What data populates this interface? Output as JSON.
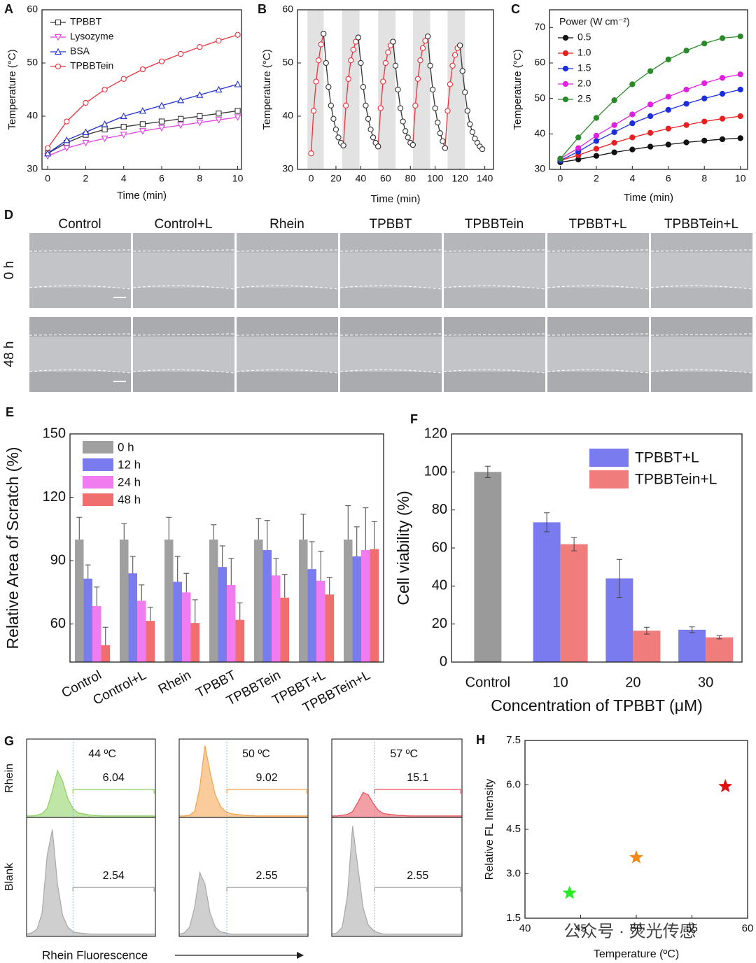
{
  "chart_data": [
    {
      "type": "line",
      "panel": "A",
      "xlabel": "Time (min)",
      "ylabel": "Temperature (°C)",
      "x": [
        0,
        1,
        2,
        3,
        4,
        5,
        6,
        7,
        8,
        9,
        10
      ],
      "xlim": [
        -0.3,
        10.2
      ],
      "ylim": [
        30,
        60
      ],
      "xticks": [
        0,
        2,
        4,
        6,
        8,
        10
      ],
      "yticks": [
        30,
        40,
        50,
        60
      ],
      "legend": "upper left",
      "marker_fill": "open",
      "series": [
        {
          "name": "TPBBT",
          "color": "#333333",
          "marker": "square",
          "values": [
            33,
            35,
            36.5,
            37.5,
            38,
            38.5,
            39,
            39.5,
            40,
            40.5,
            41
          ]
        },
        {
          "name": "Lysozyme",
          "color": "#e040e0",
          "marker": "triangle-down",
          "values": [
            32.5,
            34,
            35,
            35.8,
            36.5,
            37.2,
            37.8,
            38.3,
            38.8,
            39.3,
            39.8
          ]
        },
        {
          "name": "BSA",
          "color": "#2030d0",
          "marker": "triangle",
          "values": [
            33,
            35.5,
            37,
            38.5,
            40,
            41,
            42,
            43,
            44,
            45,
            46
          ]
        },
        {
          "name": "TPBBTein",
          "color": "#e8323c",
          "marker": "circle",
          "values": [
            34,
            39,
            42.5,
            45,
            47,
            48.8,
            50.3,
            51.7,
            53,
            54.2,
            55.3
          ]
        }
      ]
    },
    {
      "type": "line",
      "panel": "B",
      "xlabel": "Time (min)",
      "ylabel": "Temperature (°C)",
      "x": [
        0,
        2,
        4,
        6,
        8,
        10,
        12,
        14,
        16,
        18,
        20,
        22,
        24,
        26,
        28,
        30,
        32,
        34,
        36,
        38,
        40,
        42,
        44,
        46,
        48,
        50,
        52,
        54,
        56,
        58,
        60,
        62,
        64,
        66,
        68,
        70,
        72,
        74,
        76,
        78,
        80,
        82,
        84,
        86,
        88,
        90,
        92,
        94,
        96,
        98,
        100,
        102,
        104,
        106,
        108,
        110,
        112,
        114,
        116,
        118,
        120,
        122,
        124,
        126,
        128,
        130,
        132,
        134,
        136,
        138
      ],
      "xlim": [
        -11,
        147
      ],
      "ylim": [
        30,
        60
      ],
      "xticks": [
        0,
        20,
        40,
        60,
        80,
        100,
        120,
        140
      ],
      "yticks": [
        30,
        40,
        50,
        60
      ],
      "marker_fill": "open",
      "shaded_regions": [
        [
          -3,
          10
        ],
        [
          25,
          39
        ],
        [
          54,
          68
        ],
        [
          82,
          96
        ],
        [
          110,
          124
        ]
      ],
      "series": [
        {
          "color": "#e8323c",
          "marker": "circle",
          "values": [
            33,
            41,
            46.5,
            50.5,
            53.5,
            55.5,
            null,
            null,
            null,
            null,
            null,
            null,
            null,
            34.5,
            42,
            47,
            50.5,
            52.5,
            54,
            54.8,
            null,
            null,
            null,
            null,
            null,
            null,
            null,
            34.3,
            41.5,
            46.5,
            50,
            52,
            53.3,
            54,
            null,
            null,
            null,
            null,
            null,
            null,
            null,
            34.6,
            42,
            47,
            50.5,
            52.8,
            54.2,
            55,
            null,
            null,
            null,
            null,
            null,
            null,
            34,
            41,
            46,
            49.5,
            51.5,
            52.8,
            53.3,
            null,
            null,
            null,
            null,
            null,
            null,
            null,
            null,
            null
          ]
        },
        {
          "color": "#333333",
          "marker": "circle",
          "values": [
            null,
            null,
            null,
            null,
            null,
            55.5,
            50,
            45.5,
            42,
            39.5,
            37.5,
            36,
            35,
            34.5,
            null,
            null,
            null,
            null,
            null,
            54.8,
            50,
            45.5,
            42,
            39.5,
            37.5,
            36,
            35,
            34.3,
            null,
            null,
            null,
            null,
            null,
            54,
            49.5,
            45,
            41.5,
            39,
            37.2,
            36,
            35,
            34.6,
            null,
            null,
            null,
            null,
            null,
            55,
            49.5,
            45,
            41.5,
            38.8,
            36.8,
            35.3,
            34,
            null,
            null,
            null,
            null,
            null,
            53.3,
            48.5,
            44.5,
            41,
            38.5,
            37,
            35.8,
            35,
            34.3,
            33.8
          ]
        }
      ]
    },
    {
      "type": "line",
      "panel": "C",
      "xlabel": "Time (min)",
      "ylabel": "Temperature (°C)",
      "x": [
        0,
        1,
        2,
        3,
        4,
        5,
        6,
        7,
        8,
        9,
        10
      ],
      "xlim": [
        -0.6,
        10.4
      ],
      "ylim": [
        30,
        75
      ],
      "xticks": [
        0,
        2,
        4,
        6,
        8,
        10
      ],
      "yticks": [
        30,
        40,
        50,
        60,
        70
      ],
      "legend": "upper left",
      "legend_title": "Power (W cm⁻²)",
      "marker_fill": "filled",
      "series": [
        {
          "name": "0.5",
          "color": "#111111",
          "marker": "circle",
          "values": [
            32,
            32.8,
            33.8,
            34.8,
            35.6,
            36.4,
            37,
            37.6,
            38.1,
            38.5,
            38.8
          ]
        },
        {
          "name": "1.0",
          "color": "#e82020",
          "marker": "circle",
          "values": [
            32.5,
            34,
            35.8,
            37.5,
            39,
            40.3,
            41.5,
            42.5,
            43.5,
            44.3,
            45
          ]
        },
        {
          "name": "1.5",
          "color": "#1a2ee0",
          "marker": "circle",
          "values": [
            32.5,
            35,
            38,
            40.5,
            43,
            45,
            46.8,
            48.5,
            50,
            51.3,
            52.5
          ]
        },
        {
          "name": "2.0",
          "color": "#e020e0",
          "marker": "circle",
          "values": [
            33,
            36,
            39.5,
            42.5,
            45.5,
            48.3,
            50.5,
            52.5,
            54.3,
            55.8,
            56.8
          ]
        },
        {
          "name": "2.5",
          "color": "#2a8a2a",
          "marker": "circle",
          "values": [
            33,
            39,
            44.5,
            49.5,
            54,
            57.7,
            61,
            63.5,
            65.5,
            67,
            67.5
          ]
        }
      ]
    },
    {
      "type": "bar",
      "panel": "E",
      "ylabel": "Relative Area of Scratch (%)",
      "ylim": [
        42,
        150
      ],
      "yticks": [
        60,
        90,
        120,
        150
      ],
      "legend": "upper left",
      "error_style": "upper",
      "categories": [
        "Control",
        "Control+L",
        "Rhein",
        "TPBBT",
        "TPBBTein",
        "TPBBT+L",
        "TPBBTein+L"
      ],
      "series": [
        {
          "name": "0 h",
          "color": "#a0a0a0",
          "values": [
            100,
            100,
            100,
            100,
            100,
            100,
            100
          ],
          "errors": [
            10.5,
            7.5,
            10.5,
            7,
            10,
            12,
            16
          ]
        },
        {
          "name": "12 h",
          "color": "#7b7bf0",
          "values": [
            81.5,
            84,
            80,
            87,
            95,
            86,
            92
          ],
          "errors": [
            6.5,
            8,
            12,
            10,
            14,
            13,
            14
          ]
        },
        {
          "name": "24 h",
          "color": "#f07cf0",
          "values": [
            68.5,
            71,
            75,
            78.5,
            83,
            80.5,
            95
          ],
          "errors": [
            9,
            7.5,
            9,
            12.5,
            8,
            14,
            20
          ]
        },
        {
          "name": "48 h",
          "color": "#f06e6e",
          "values": [
            50,
            61.5,
            60.5,
            62,
            72.5,
            74,
            95.5
          ],
          "errors": [
            8.5,
            6.5,
            11,
            8,
            11,
            8,
            13
          ]
        }
      ]
    },
    {
      "type": "bar",
      "panel": "F",
      "xlabel": "Concentration of TPBBT (μM)",
      "ylabel": "Cell viability (%)",
      "ylim": [
        0,
        120
      ],
      "yticks": [
        0,
        20,
        40,
        60,
        80,
        100,
        120
      ],
      "legend": "upper right",
      "error_style": "both",
      "categories": [
        "Control",
        "10",
        "20",
        "30"
      ],
      "series": [
        {
          "color": "#9a9a9a",
          "values": [
            100,
            null,
            null,
            null
          ],
          "errors": [
            3,
            null,
            null,
            null
          ]
        },
        {
          "name": "TPBBT+L",
          "color": "#7b7bf0",
          "values": [
            null,
            73.5,
            44,
            17
          ],
          "errors": [
            null,
            5,
            10,
            1.5
          ]
        },
        {
          "name": "TPBBTein+L",
          "color": "#f07c7c",
          "values": [
            null,
            62,
            16.5,
            13
          ],
          "errors": [
            null,
            3.5,
            1.8,
            0.8
          ]
        }
      ]
    },
    {
      "type": "density",
      "panel": "G",
      "xlabel": "Rhein Fluorescence",
      "rows": [
        "Rhein",
        "Blank"
      ],
      "columns": [
        "44 ºC",
        "50 ºC",
        "57 ºC"
      ],
      "x": [
        0,
        4,
        8,
        12,
        16,
        20,
        24,
        28,
        32,
        36,
        40,
        50,
        60,
        70,
        80,
        90,
        100
      ],
      "xlim": [
        0,
        100
      ],
      "ylim": [
        0,
        100
      ],
      "series": [
        {
          "color": "#8bd15f",
          "gate": [
            36,
            99
          ],
          "gate_value": 6.04,
          "values": [
            2,
            2,
            3,
            5,
            12,
            35,
            62,
            48,
            25,
            12,
            6,
            3,
            2,
            2,
            2,
            2,
            2
          ]
        },
        {
          "color": "#f5a24a",
          "gate": [
            37,
            99
          ],
          "gate_value": 9.02,
          "values": [
            2,
            2,
            3,
            8,
            40,
            95,
            60,
            30,
            15,
            8,
            5,
            3,
            2,
            2,
            2,
            2,
            2
          ]
        },
        {
          "color": "#e8505b",
          "gate": [
            33,
            99
          ],
          "gate_value": 15.1,
          "values": [
            2,
            2,
            3,
            4,
            8,
            20,
            33,
            30,
            18,
            9,
            5,
            3,
            2,
            2,
            2,
            2,
            2
          ]
        },
        {
          "color": "#a8a8a8",
          "gate": [
            36,
            99
          ],
          "gate_value": 2.54,
          "values": [
            2,
            3,
            6,
            20,
            70,
            92,
            45,
            18,
            8,
            4,
            3,
            2,
            2,
            2,
            2,
            2,
            2
          ]
        },
        {
          "color": "#a8a8a8",
          "gate": [
            37,
            99
          ],
          "gate_value": 2.55,
          "values": [
            2,
            3,
            8,
            25,
            55,
            45,
            20,
            8,
            4,
            3,
            2,
            2,
            2,
            2,
            2,
            2,
            2
          ]
        },
        {
          "color": "#a8a8a8",
          "gate": [
            33,
            99
          ],
          "gate_value": 2.55,
          "values": [
            2,
            3,
            8,
            35,
            95,
            60,
            25,
            10,
            5,
            3,
            2,
            2,
            2,
            2,
            2,
            2,
            2
          ]
        }
      ]
    },
    {
      "type": "scatter",
      "panel": "H",
      "xlabel": "Temperature (ºC)",
      "ylabel": "Relative FL Intensity",
      "x": [
        44,
        50,
        58
      ],
      "values": [
        2.35,
        3.55,
        5.95
      ],
      "colors": [
        "#22ee22",
        "#f08a1a",
        "#e01010"
      ],
      "marker": "star",
      "xlim": [
        40,
        60
      ],
      "ylim": [
        1.5,
        7.5
      ],
      "xticks": [
        40,
        45,
        50,
        55,
        60
      ],
      "yticks": [
        1.5,
        {
          "value": 3,
          "label": "3.0"
        },
        4.5,
        {
          "value": 6,
          "label": "6.0"
        },
        7.5
      ]
    }
  ],
  "image_grid": {
    "panel": "D",
    "columns": [
      "Control",
      "Control+L",
      "Rhein",
      "TPBBT",
      "TPBBTein",
      "TPBBT+L",
      "TPBBTein+L"
    ],
    "rows": [
      "0 h",
      "48 h"
    ]
  },
  "watermark": "公众号 · 荧光传感"
}
